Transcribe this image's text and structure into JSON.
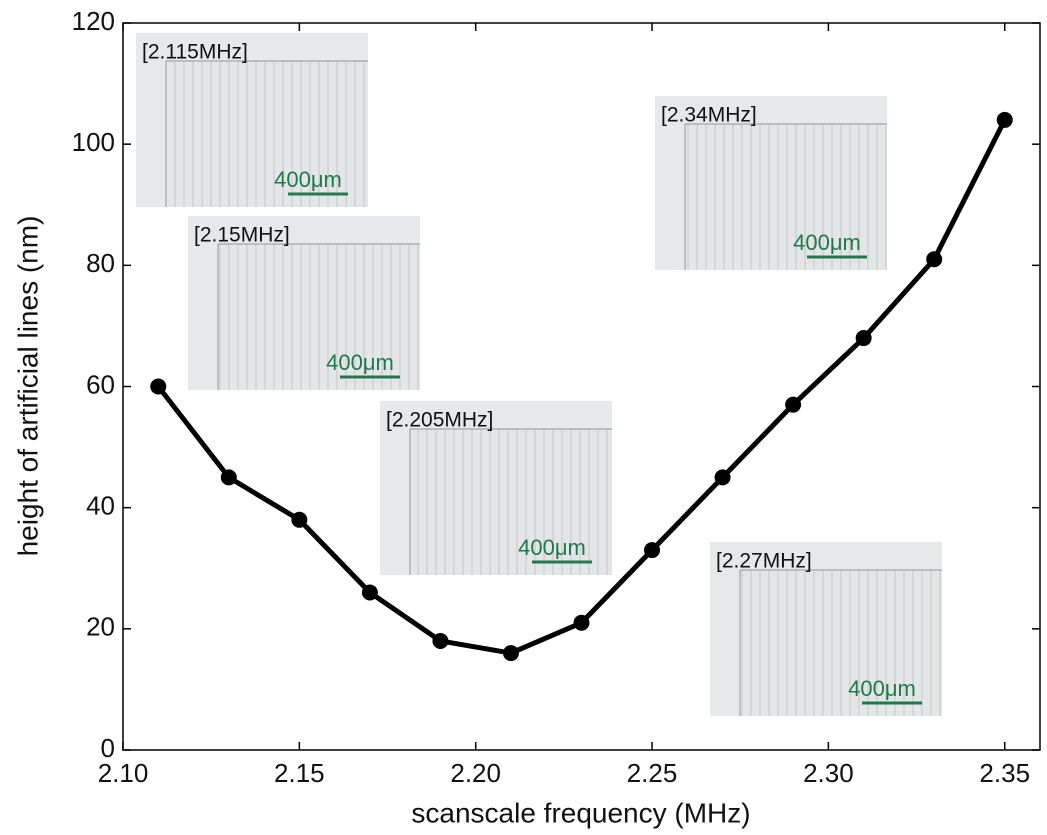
{
  "chart_data": {
    "type": "line",
    "x_label": "scanscale frequency (MHz)",
    "y_label": "height of artificial lines (nm)",
    "x": [
      2.11,
      2.13,
      2.15,
      2.17,
      2.19,
      2.21,
      2.23,
      2.25,
      2.27,
      2.29,
      2.31,
      2.33,
      2.35
    ],
    "series": [
      {
        "color": "#000000",
        "values": [
          60,
          45,
          38,
          26,
          18,
          16,
          21,
          33,
          45,
          57,
          68,
          81,
          104
        ]
      }
    ],
    "xlim": [
      2.1,
      2.36
    ],
    "xticks": [
      {
        "value": 2.1,
        "label": "2.10"
      },
      2.15,
      {
        "value": 2.2,
        "label": "2.20"
      },
      2.25,
      {
        "value": 2.3,
        "label": "2.30"
      },
      2.35
    ],
    "ylim": [
      0,
      120
    ],
    "yticks": [
      0,
      20,
      40,
      60,
      80,
      100,
      120
    ],
    "grid": false,
    "insets": [
      {
        "label": "[2.115MHz]",
        "scale_label": "400μm"
      },
      {
        "label": "[2.15MHz]",
        "scale_label": "400μm"
      },
      {
        "label": "[2.205MHz]",
        "scale_label": "400μm"
      },
      {
        "label": "[2.34MHz]",
        "scale_label": "400μm"
      },
      {
        "label": "[2.27MHz]",
        "scale_label": "400μm"
      }
    ]
  }
}
